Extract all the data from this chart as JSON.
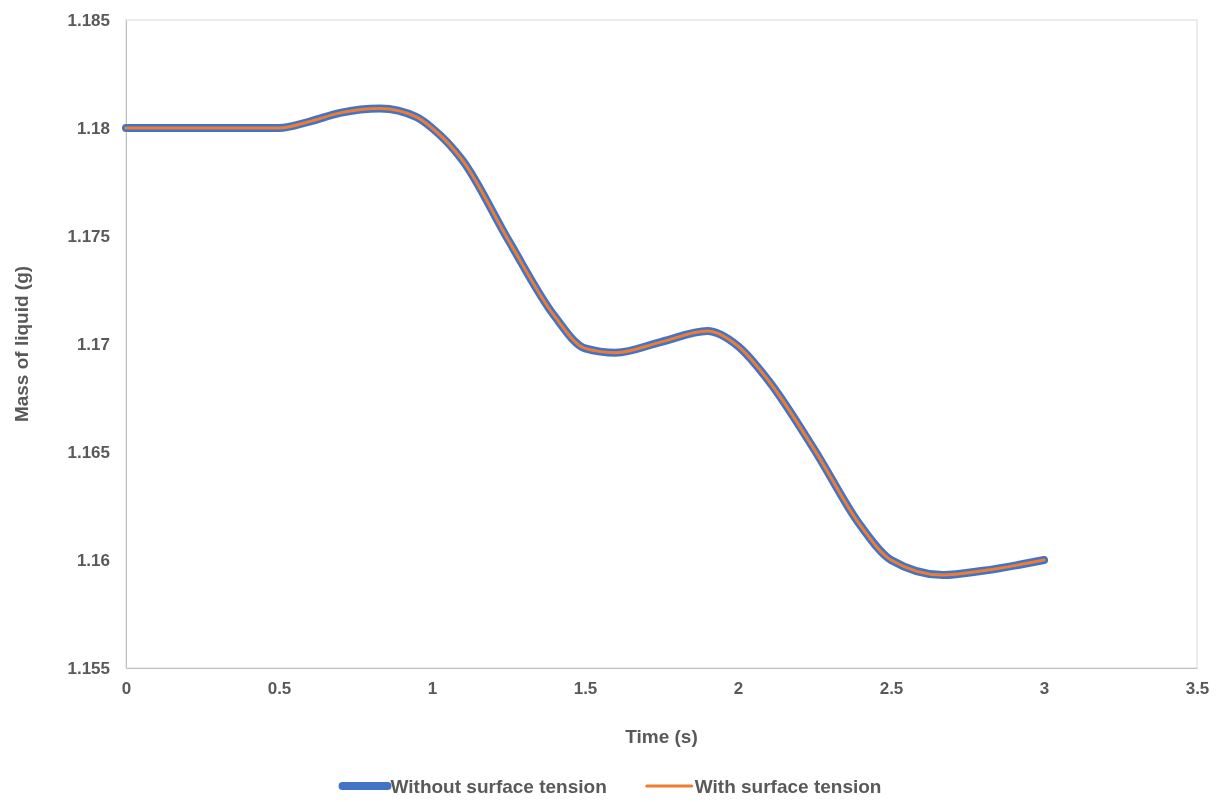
{
  "chart_data": {
    "type": "line",
    "xlabel": "Time (s)",
    "ylabel": "Mass of liquid (g)",
    "x": [
      0,
      0.25,
      0.5,
      0.6,
      0.7,
      0.83,
      0.95,
      1,
      1.1,
      1.25,
      1.4,
      1.5,
      1.6,
      1.75,
      1.9,
      2,
      2.1,
      2.25,
      2.4,
      2.5,
      2.67,
      2.8,
      3
    ],
    "xlim": [
      0,
      3.5
    ],
    "xticks": [
      0,
      0.5,
      1,
      1.5,
      2,
      2.5,
      3,
      3.5
    ],
    "ylim": [
      1.155,
      1.185
    ],
    "yticks": [
      1.155,
      1.16,
      1.165,
      1.17,
      1.175,
      1.18,
      1.185
    ],
    "grid": false,
    "legend": "bottom",
    "marker": "none",
    "line_style": "solid",
    "series": [
      {
        "name": "Without surface tension",
        "color": "#4472c4",
        "values": [
          1.18,
          1.18,
          1.18,
          1.1803,
          1.1807,
          1.1809,
          1.1805,
          1.18,
          1.1785,
          1.1748,
          1.1713,
          1.1698,
          1.1696,
          1.1701,
          1.1706,
          1.1699,
          1.1683,
          1.1651,
          1.1616,
          1.16,
          1.1593,
          1.1595,
          1.16
        ]
      },
      {
        "name": "With surface tension",
        "color": "#ed7d31",
        "values": [
          1.18,
          1.18,
          1.18,
          1.1803,
          1.1807,
          1.1809,
          1.1805,
          1.18,
          1.1785,
          1.1748,
          1.1713,
          1.1698,
          1.1696,
          1.1701,
          1.1706,
          1.1699,
          1.1683,
          1.1651,
          1.1616,
          1.16,
          1.1593,
          1.1595,
          1.16
        ]
      }
    ]
  }
}
